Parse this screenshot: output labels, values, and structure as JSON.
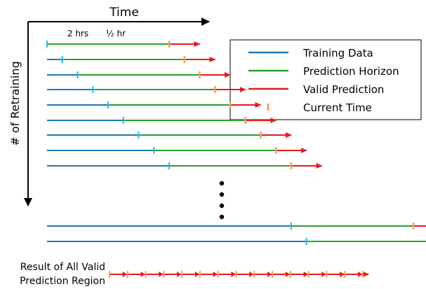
{
  "labels": {
    "x_axis": "Time",
    "y_axis": "# of Retraining",
    "training_span": "2 hrs",
    "prediction_span": "½ hr",
    "result_line1": "Result of All Valid",
    "result_line2": "Prediction Region"
  },
  "legend": {
    "items": [
      {
        "label": "Training Data",
        "color": "#1f77b4",
        "kind": "line"
      },
      {
        "label": "Prediction Horizon",
        "color": "#2ca02c",
        "kind": "line"
      },
      {
        "label": "Valid Prediction",
        "color": "#e41a1c",
        "kind": "line"
      },
      {
        "label": "Current Time",
        "color": "#f0a060",
        "kind": "tick"
      }
    ]
  },
  "colors": {
    "training": "#1f77b4",
    "horizon": "#2ca02c",
    "valid": "#e41a1c",
    "current": "#f0a060",
    "marker": "#23bde0",
    "axis": "#000000"
  },
  "retrainings": [
    {
      "train_hours": 0.0
    },
    {
      "train_hours": 0.25
    },
    {
      "train_hours": 0.5
    },
    {
      "train_hours": 0.75
    },
    {
      "train_hours": 1.0
    },
    {
      "train_hours": 1.25
    },
    {
      "train_hours": 1.5
    },
    {
      "train_hours": 1.75
    },
    {
      "train_hours": 2.0
    },
    {
      "train_hours": 4.0
    },
    {
      "train_hours": 4.25
    }
  ],
  "ellipsis_dots": 4,
  "result_segments": 14
}
